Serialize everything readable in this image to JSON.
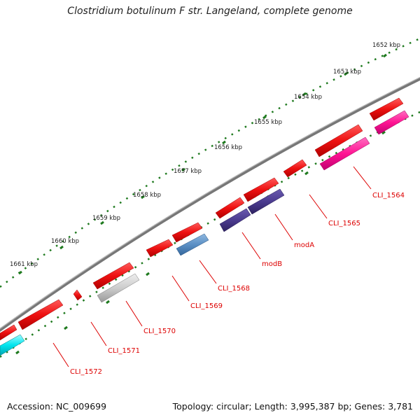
{
  "title": "Clostridium botulinum F str. Langeland, complete genome",
  "footer": {
    "accession": "Accession: NC_009699",
    "summary": "Topology: circular; Length: 3,995,387 bp; Genes: 3,781"
  },
  "colors": {
    "backbone": "#8c8c8c",
    "tick": "#1f7a1f",
    "red": "#ee1111",
    "gray": "#cccccc",
    "purple": "#4b3b8f",
    "steelblue": "#5b8fc4",
    "magenta": "#ff1493",
    "cyan": "#00e5ee",
    "label": "#dd0000"
  },
  "kbp_labels": [
    "1652 kbp",
    "1653 kbp",
    "1654 kbp",
    "1655 kbp",
    "1656 kbp",
    "1657 kbp",
    "1658 kbp",
    "1659 kbp",
    "1660 kbp",
    "1661 kbp"
  ],
  "gene_labels": [
    "CLI_1564",
    "CLI_1565",
    "modA",
    "modB",
    "CLI_1568",
    "CLI_1569",
    "CLI_1570",
    "CLI_1571",
    "CLI_1572"
  ]
}
